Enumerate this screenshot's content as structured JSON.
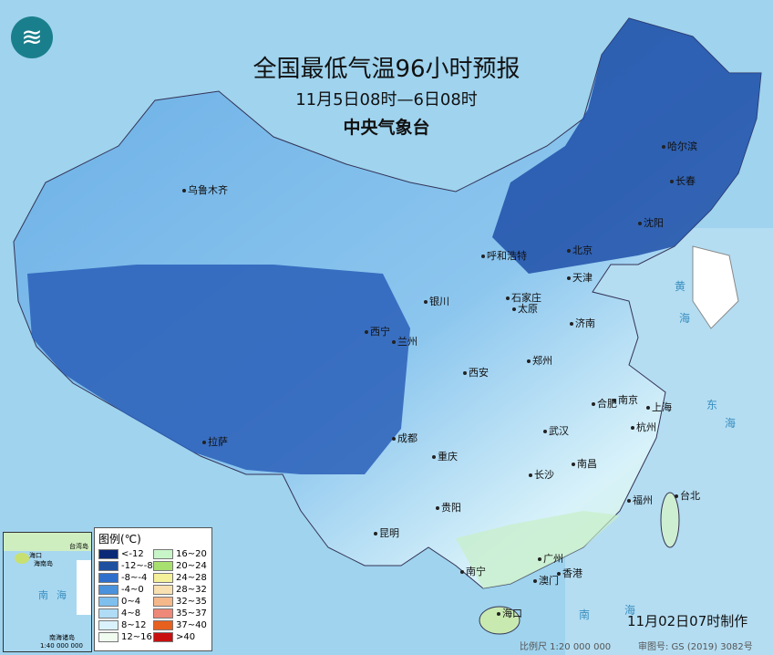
{
  "header": {
    "title": "全国最低气温96小时预报",
    "period": "11月5日08时—6日08时",
    "agency": "中央气象台"
  },
  "logo": {
    "icon": "cma-logo"
  },
  "cities": [
    {
      "name": "乌鲁木齐"
    },
    {
      "name": "哈尔滨"
    },
    {
      "name": "长春"
    },
    {
      "name": "沈阳"
    },
    {
      "name": "呼和浩特"
    },
    {
      "name": "北京"
    },
    {
      "name": "天津"
    },
    {
      "name": "石家庄"
    },
    {
      "name": "太原"
    },
    {
      "name": "银川"
    },
    {
      "name": "济南"
    },
    {
      "name": "西宁"
    },
    {
      "name": "兰州"
    },
    {
      "name": "郑州"
    },
    {
      "name": "西安"
    },
    {
      "name": "合肥"
    },
    {
      "name": "南京"
    },
    {
      "name": "上海"
    },
    {
      "name": "杭州"
    },
    {
      "name": "成都"
    },
    {
      "name": "武汉"
    },
    {
      "name": "重庆"
    },
    {
      "name": "南昌"
    },
    {
      "name": "拉萨"
    },
    {
      "name": "长沙"
    },
    {
      "name": "贵阳"
    },
    {
      "name": "福州"
    },
    {
      "name": "台北"
    },
    {
      "name": "昆明"
    },
    {
      "name": "广州"
    },
    {
      "name": "南宁"
    },
    {
      "name": "澳门"
    },
    {
      "name": "香港"
    },
    {
      "name": "海口"
    }
  ],
  "seas": {
    "huanghai": [
      "黄",
      "海"
    ],
    "donghai": [
      "东",
      "海"
    ],
    "nanhai": [
      "南",
      "海"
    ]
  },
  "legend": {
    "title": "图例(℃)",
    "items": [
      {
        "label": "<-12",
        "color": "#0a2a78"
      },
      {
        "label": "16~20",
        "color": "#c8f5c8"
      },
      {
        "label": "-12~-8",
        "color": "#1e50a0"
      },
      {
        "label": "20~24",
        "color": "#a8e070"
      },
      {
        "label": "-8~-4",
        "color": "#2f6fcc"
      },
      {
        "label": "24~28",
        "color": "#f5f09a"
      },
      {
        "label": "-4~0",
        "color": "#4a92dc"
      },
      {
        "label": "28~32",
        "color": "#f8e0b0"
      },
      {
        "label": "0~4",
        "color": "#7fbfee"
      },
      {
        "label": "32~35",
        "color": "#f5b88a"
      },
      {
        "label": "4~8",
        "color": "#b0dcf6"
      },
      {
        "label": "35~37",
        "color": "#ee8878"
      },
      {
        "label": "8~12",
        "color": "#daf2fc"
      },
      {
        "label": "37~40",
        "color": "#e8601e"
      },
      {
        "label": "12~16",
        "color": "#f0fcf0"
      },
      {
        "label": ">40",
        "color": "#c81010"
      }
    ]
  },
  "inset": {
    "labels": [
      "海口",
      "海南岛",
      "台湾岛",
      "南",
      "海",
      "南海诸岛"
    ],
    "scale": "1:40 000 000"
  },
  "footer": {
    "made": "11月02日07时制作",
    "scale": "比例尺 1:20 000 000",
    "approval": "审图号: GS (2019) 3082号"
  }
}
